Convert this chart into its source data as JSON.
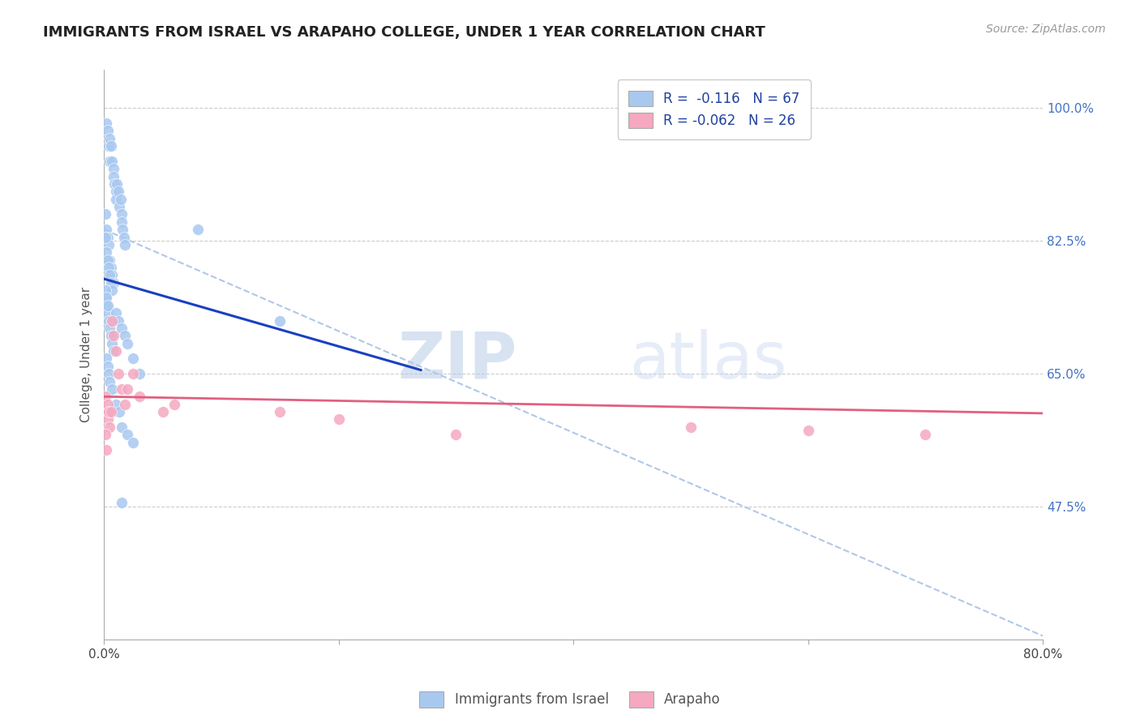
{
  "title": "IMMIGRANTS FROM ISRAEL VS ARAPAHO COLLEGE, UNDER 1 YEAR CORRELATION CHART",
  "source": "Source: ZipAtlas.com",
  "ylabel": "College, Under 1 year",
  "xlim": [
    0.0,
    0.8
  ],
  "ylim": [
    0.3,
    1.05
  ],
  "xticks": [
    0.0,
    0.2,
    0.4,
    0.6,
    0.8
  ],
  "xtick_labels": [
    "0.0%",
    "",
    "",
    "",
    "80.0%"
  ],
  "yticks_right": [
    0.475,
    0.65,
    0.825,
    1.0
  ],
  "ytick_labels_right": [
    "47.5%",
    "65.0%",
    "82.5%",
    "100.0%"
  ],
  "legend_r1": "R =  -0.116   N = 67",
  "legend_r2": "R = -0.062   N = 26",
  "blue_color": "#a8c8f0",
  "pink_color": "#f5a8c0",
  "blue_line_color": "#1a40c0",
  "pink_line_color": "#e06080",
  "dashed_line_color": "#b0c8e8",
  "watermark_zip": "ZIP",
  "watermark_atlas": "atlas",
  "blue_scatter_x": [
    0.002,
    0.003,
    0.004,
    0.005,
    0.005,
    0.006,
    0.007,
    0.008,
    0.008,
    0.009,
    0.01,
    0.01,
    0.011,
    0.012,
    0.013,
    0.014,
    0.015,
    0.015,
    0.016,
    0.017,
    0.018,
    0.001,
    0.002,
    0.003,
    0.004,
    0.005,
    0.006,
    0.007,
    0.008,
    0.001,
    0.002,
    0.003,
    0.004,
    0.005,
    0.006,
    0.007,
    0.001,
    0.002,
    0.003,
    0.004,
    0.005,
    0.006,
    0.007,
    0.008,
    0.001,
    0.002,
    0.003,
    0.01,
    0.012,
    0.015,
    0.018,
    0.02,
    0.025,
    0.03,
    0.15,
    0.08,
    0.002,
    0.003,
    0.004,
    0.005,
    0.007,
    0.01,
    0.013,
    0.015,
    0.02,
    0.025,
    0.015
  ],
  "blue_scatter_y": [
    0.98,
    0.97,
    0.95,
    0.96,
    0.93,
    0.95,
    0.93,
    0.92,
    0.91,
    0.9,
    0.89,
    0.88,
    0.9,
    0.89,
    0.87,
    0.88,
    0.86,
    0.85,
    0.84,
    0.83,
    0.82,
    0.86,
    0.84,
    0.83,
    0.82,
    0.8,
    0.79,
    0.78,
    0.77,
    0.83,
    0.81,
    0.8,
    0.79,
    0.78,
    0.77,
    0.76,
    0.75,
    0.74,
    0.73,
    0.72,
    0.71,
    0.7,
    0.69,
    0.68,
    0.76,
    0.75,
    0.74,
    0.73,
    0.72,
    0.71,
    0.7,
    0.69,
    0.67,
    0.65,
    0.72,
    0.84,
    0.67,
    0.66,
    0.65,
    0.64,
    0.63,
    0.61,
    0.6,
    0.58,
    0.57,
    0.56,
    0.48
  ],
  "pink_scatter_x": [
    0.001,
    0.002,
    0.003,
    0.003,
    0.004,
    0.005,
    0.006,
    0.007,
    0.008,
    0.01,
    0.012,
    0.015,
    0.018,
    0.02,
    0.025,
    0.03,
    0.05,
    0.06,
    0.15,
    0.2,
    0.3,
    0.5,
    0.6,
    0.7,
    0.001,
    0.002
  ],
  "pink_scatter_y": [
    0.62,
    0.6,
    0.61,
    0.59,
    0.6,
    0.58,
    0.6,
    0.72,
    0.7,
    0.68,
    0.65,
    0.63,
    0.61,
    0.63,
    0.65,
    0.62,
    0.6,
    0.61,
    0.6,
    0.59,
    0.57,
    0.58,
    0.575,
    0.57,
    0.57,
    0.55
  ],
  "blue_trend_x": [
    0.0,
    0.27
  ],
  "blue_trend_y": [
    0.775,
    0.655
  ],
  "pink_trend_x": [
    0.0,
    0.8
  ],
  "pink_trend_y": [
    0.62,
    0.598
  ],
  "dashed_trend_x": [
    0.0,
    0.8
  ],
  "dashed_trend_y": [
    0.84,
    0.305
  ]
}
